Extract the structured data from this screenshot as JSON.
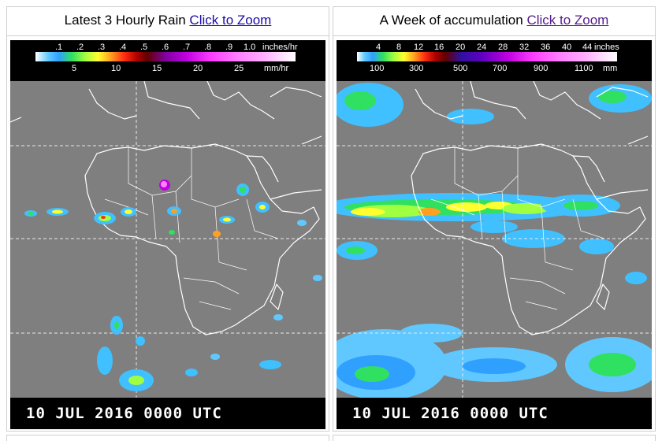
{
  "panels": [
    {
      "title": "Latest 3 Hourly Rain",
      "link": "Click to Zoom",
      "legend_top_ticks": [
        ".1",
        ".2",
        ".3",
        ".4",
        ".5",
        ".6",
        ".7",
        ".8",
        ".9",
        "1.0"
      ],
      "legend_top_unit": "inches/hr",
      "legend_bottom_ticks": [
        "5",
        "10",
        "15",
        "20",
        "25"
      ],
      "legend_bottom_unit": "mm/hr",
      "timestamp": "10 JUL 2016 0000 UTC"
    },
    {
      "title": "A Week of accumulation",
      "link": "Click to Zoom",
      "legend_top_ticks": [
        "4",
        "8",
        "12",
        "16",
        "20",
        "24",
        "28",
        "32",
        "36",
        "40",
        "44"
      ],
      "legend_top_unit": "inches",
      "legend_bottom_ticks": [
        "100",
        "300",
        "500",
        "700",
        "900",
        "1100"
      ],
      "legend_bottom_unit": "mm",
      "timestamp": "10 JUL 2016 0000 UTC"
    }
  ],
  "colors": {
    "ocean_land": "#7f7f7f",
    "coast": "#ffffff",
    "link": "#1a0dab",
    "link_visited": "#551a8b"
  }
}
